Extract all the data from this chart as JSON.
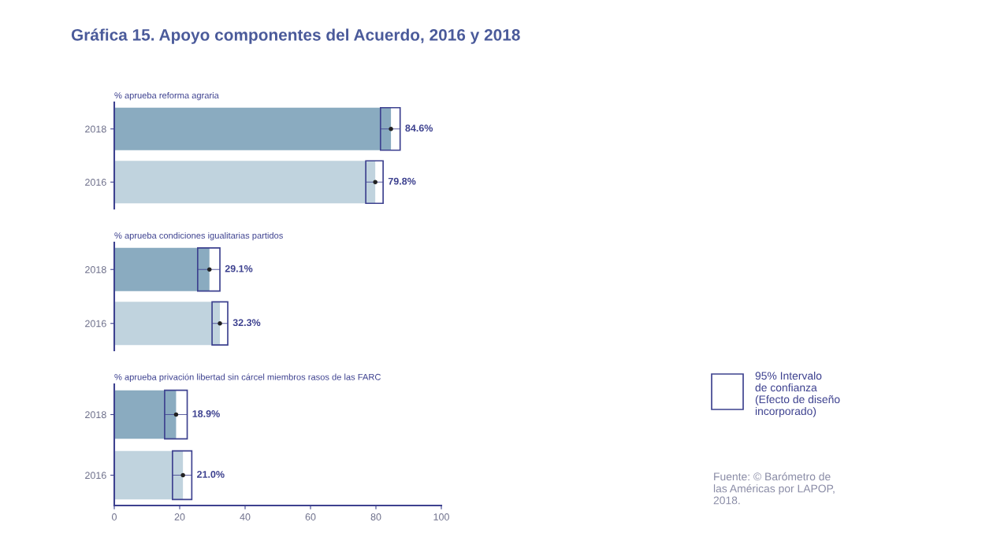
{
  "chart_data": [
    {
      "type": "bar",
      "orientation": "horizontal",
      "title": "Gráfica 15. Apoyo componentes del Acuerdo, 2016 y 2018",
      "subtitle": "% aprueba reforma agraria",
      "categories": [
        "2018",
        "2016"
      ],
      "xlim": [
        0,
        100
      ],
      "xticks": [
        0,
        20,
        40,
        60,
        80,
        100
      ],
      "tick_labels": "y",
      "series": [
        {
          "type": "bar",
          "values": [
            84.6,
            79.8
          ],
          "colors": [
            "#8aabc0",
            "#c0d3de"
          ],
          "errors": [
            [
              81.4,
              87.4
            ],
            [
              76.9,
              82.2
            ]
          ],
          "value_labels": [
            "84.6%",
            "79.8%"
          ]
        },
        {
          "type": "scatter",
          "marker": "circle",
          "color": "#222222",
          "values": [
            84.6,
            79.8
          ]
        }
      ]
    },
    {
      "type": "bar",
      "orientation": "horizontal",
      "subtitle": "% aprueba condiciones igualitarias partidos",
      "categories": [
        "2018",
        "2016"
      ],
      "xlim": [
        0,
        100
      ],
      "xticks": [
        0,
        20,
        40,
        60,
        80,
        100
      ],
      "tick_labels": "y",
      "series": [
        {
          "type": "bar",
          "values": [
            29.1,
            32.3
          ],
          "colors": [
            "#8aabc0",
            "#c0d3de"
          ],
          "errors": [
            [
              25.5,
              32.3
            ],
            [
              29.9,
              34.7
            ]
          ],
          "value_labels": [
            "29.1%",
            "32.3%"
          ]
        },
        {
          "type": "scatter",
          "marker": "circle",
          "color": "#222222",
          "values": [
            29.1,
            32.3
          ]
        }
      ]
    },
    {
      "type": "bar",
      "orientation": "horizontal",
      "subtitle": "% aprueba privación libertad sin cárcel miembros rasos de las FARC",
      "categories": [
        "2018",
        "2016"
      ],
      "xlim": [
        0,
        100
      ],
      "xticks": [
        0,
        20,
        40,
        60,
        80,
        100
      ],
      "series": [
        {
          "type": "bar",
          "values": [
            18.9,
            21.0
          ],
          "colors": [
            "#8aabc0",
            "#c0d3de"
          ],
          "errors": [
            [
              15.4,
              22.3
            ],
            [
              17.8,
              23.7
            ]
          ],
          "value_labels": [
            "18.9%",
            "21.0%"
          ]
        },
        {
          "type": "scatter",
          "marker": "circle",
          "color": "#222222",
          "values": [
            18.9,
            21.0
          ]
        }
      ],
      "annotations": [
        "95% Intervalo\nde confianza\n(Efecto de diseño\nincorporado)",
        "Fuente: © Barómetro de\nlas Américas por LAPOP,\n2018."
      ]
    }
  ]
}
